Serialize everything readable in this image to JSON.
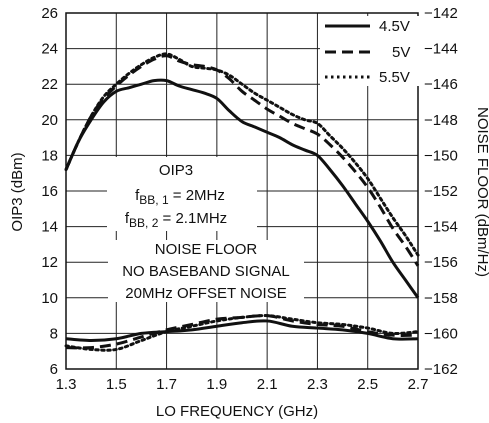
{
  "chart_data": {
    "type": "line",
    "xlabel": "LO FREQUENCY (GHz)",
    "ylabel": "OIP3 (dBm)",
    "y2label": "NOISE FLOOR (dBm/Hz)",
    "xlim": [
      1.3,
      2.7
    ],
    "ylim": [
      6,
      26
    ],
    "y2lim": [
      -162,
      -142
    ],
    "x_ticks": [
      "1.3",
      "1.5",
      "1.7",
      "1.9",
      "2.1",
      "2.3",
      "2.5",
      "2.7"
    ],
    "y_ticks": [
      "6",
      "8",
      "10",
      "12",
      "14",
      "16",
      "18",
      "20",
      "22",
      "24",
      "26"
    ],
    "y2_ticks": [
      "-162",
      "-160",
      "-158",
      "-156",
      "-154",
      "-152",
      "-150",
      "-148",
      "-146",
      "-144",
      "-142"
    ],
    "grid": true,
    "legend_position": "top-right",
    "annotations": {
      "oip3_title": "OIP3",
      "fbb1_main": "f",
      "fbb1_sub": "BB, 1",
      "fbb1_value": " = 2MHz",
      "fbb2_main": "f",
      "fbb2_sub": "BB, 2",
      "fbb2_value": " = 2.1MHz",
      "noise_line1": "NOISE FLOOR",
      "noise_line2": "NO BASEBAND SIGNAL",
      "noise_line3": "20MHz OFFSET NOISE"
    },
    "series": [
      {
        "name": "4.5V",
        "style": "solid",
        "axis": "left",
        "x": [
          1.3,
          1.35,
          1.4,
          1.45,
          1.5,
          1.55,
          1.6,
          1.65,
          1.7,
          1.75,
          1.8,
          1.85,
          1.9,
          1.95,
          2.0,
          2.05,
          2.1,
          2.15,
          2.2,
          2.25,
          2.3,
          2.35,
          2.4,
          2.45,
          2.5,
          2.55,
          2.6,
          2.65,
          2.7
        ],
        "values": [
          17.2,
          18.8,
          20.0,
          21.0,
          21.6,
          21.8,
          22.0,
          22.2,
          22.2,
          21.9,
          21.7,
          21.5,
          21.2,
          20.5,
          19.9,
          19.6,
          19.3,
          19.0,
          18.6,
          18.3,
          18.0,
          17.2,
          16.3,
          15.3,
          14.3,
          13.2,
          12.0,
          11.0,
          10.0
        ]
      },
      {
        "name": "5V",
        "style": "dashed",
        "axis": "left",
        "x": [
          1.3,
          1.35,
          1.4,
          1.45,
          1.5,
          1.55,
          1.6,
          1.65,
          1.7,
          1.75,
          1.8,
          1.85,
          1.9,
          1.95,
          2.0,
          2.05,
          2.1,
          2.15,
          2.2,
          2.25,
          2.3,
          2.35,
          2.4,
          2.45,
          2.5,
          2.55,
          2.6,
          2.65,
          2.7
        ],
        "values": [
          17.2,
          18.8,
          20.2,
          21.2,
          21.9,
          22.5,
          23.0,
          23.4,
          23.6,
          23.3,
          23.1,
          23.0,
          22.8,
          22.3,
          21.6,
          21.1,
          20.6,
          20.2,
          19.8,
          19.5,
          19.2,
          18.6,
          17.9,
          17.1,
          16.2,
          15.1,
          13.9,
          12.9,
          11.8
        ]
      },
      {
        "name": "5.5V",
        "style": "dotted",
        "axis": "left",
        "x": [
          1.3,
          1.35,
          1.4,
          1.45,
          1.5,
          1.55,
          1.6,
          1.65,
          1.7,
          1.75,
          1.8,
          1.85,
          1.9,
          1.95,
          2.0,
          2.05,
          2.1,
          2.15,
          2.2,
          2.25,
          2.3,
          2.35,
          2.4,
          2.45,
          2.5,
          2.55,
          2.6,
          2.65,
          2.7
        ],
        "values": [
          17.2,
          18.8,
          20.2,
          21.3,
          22.0,
          22.6,
          23.1,
          23.5,
          23.7,
          23.4,
          23.0,
          22.9,
          22.8,
          22.5,
          22.0,
          21.5,
          21.1,
          20.7,
          20.3,
          20.0,
          19.8,
          19.1,
          18.4,
          17.6,
          16.7,
          15.6,
          14.5,
          13.5,
          12.4
        ]
      },
      {
        "name": "4.5V",
        "style": "solid",
        "axis": "right",
        "x": [
          1.3,
          1.4,
          1.5,
          1.6,
          1.7,
          1.8,
          1.9,
          2.0,
          2.1,
          2.2,
          2.3,
          2.4,
          2.5,
          2.6,
          2.7
        ],
        "values": [
          -160.3,
          -160.4,
          -160.3,
          -160.0,
          -159.9,
          -159.8,
          -159.6,
          -159.4,
          -159.3,
          -159.6,
          -159.7,
          -159.8,
          -160.0,
          -160.3,
          -160.3
        ]
      },
      {
        "name": "5V",
        "style": "dashed",
        "axis": "right",
        "x": [
          1.3,
          1.4,
          1.5,
          1.6,
          1.7,
          1.8,
          1.9,
          2.0,
          2.1,
          2.2,
          2.3,
          2.4,
          2.5,
          2.6,
          2.7
        ],
        "values": [
          -160.8,
          -160.8,
          -160.6,
          -160.2,
          -159.8,
          -159.5,
          -159.2,
          -159.1,
          -159.0,
          -159.3,
          -159.5,
          -159.6,
          -159.9,
          -160.1,
          -160.1
        ]
      },
      {
        "name": "5.5V",
        "style": "dotted",
        "axis": "right",
        "x": [
          1.3,
          1.4,
          1.5,
          1.6,
          1.7,
          1.8,
          1.9,
          2.0,
          2.1,
          2.2,
          2.3,
          2.4,
          2.5,
          2.6,
          2.7
        ],
        "values": [
          -160.7,
          -160.9,
          -160.9,
          -160.4,
          -159.9,
          -159.6,
          -159.3,
          -159.1,
          -159.0,
          -159.2,
          -159.4,
          -159.5,
          -159.7,
          -160.0,
          -159.9
        ]
      }
    ]
  }
}
